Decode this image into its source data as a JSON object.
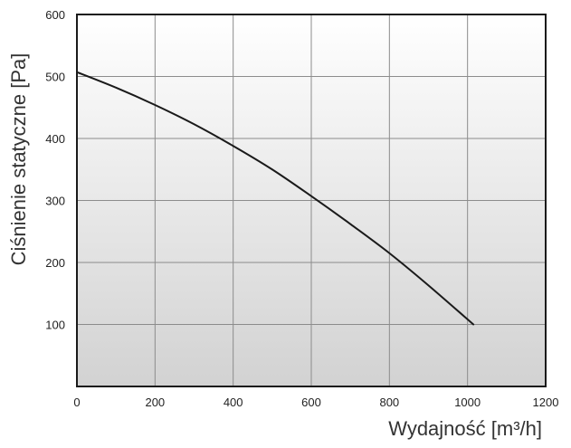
{
  "chart_data": {
    "type": "line",
    "xlabel": "Wydajność [m³/h]",
    "ylabel": "Ciśnienie statyczne [Pa]",
    "xlim": [
      0,
      1200
    ],
    "ylim": [
      0,
      600
    ],
    "x_ticks": [
      0,
      200,
      400,
      600,
      800,
      1000,
      1200
    ],
    "y_ticks": [
      100,
      200,
      300,
      400,
      500,
      600
    ],
    "grid": true,
    "background_gradient": [
      "#ffffff",
      "#d2d2d2"
    ],
    "series": [
      {
        "color": "#1a1a1a",
        "x": [
          0,
          100,
          200,
          300,
          400,
          500,
          600,
          700,
          800,
          900,
          1015
        ],
        "y": [
          507,
          482,
          454,
          423,
          388,
          350,
          307,
          262,
          215,
          163,
          100
        ]
      }
    ]
  }
}
